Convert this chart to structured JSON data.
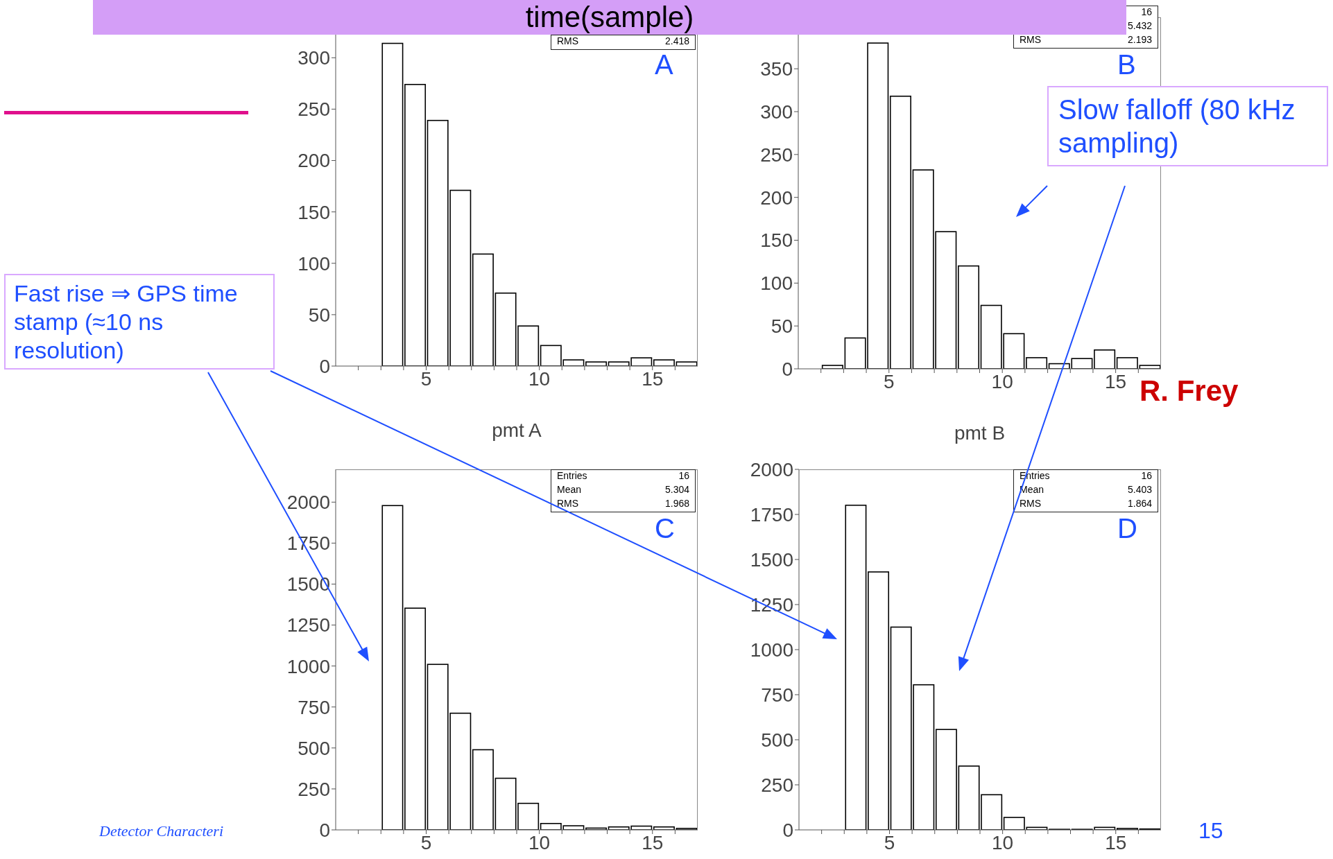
{
  "chart_data": [
    {
      "type": "histogram",
      "title": "time(sample)",
      "xlabel": "pmt A",
      "bins": [
        1,
        2,
        3,
        4,
        5,
        6,
        7,
        8,
        9,
        10,
        11,
        12,
        13,
        14,
        15,
        16,
        17
      ],
      "values": [
        0,
        0,
        314,
        274,
        239,
        171,
        109,
        71,
        39,
        20,
        6,
        4,
        4,
        8,
        6,
        4
      ],
      "color": "#000000",
      "xlim": [
        1,
        17
      ],
      "xticks": [
        {
          "value": 2,
          "label": null
        },
        {
          "value": 3,
          "label": null
        },
        {
          "value": 4,
          "label": null
        },
        5,
        {
          "value": 6,
          "label": null
        },
        {
          "value": 7,
          "label": null
        },
        {
          "value": 8,
          "label": null
        },
        {
          "value": 9,
          "label": null
        },
        10,
        {
          "value": 11,
          "label": null
        },
        {
          "value": 12,
          "label": null
        },
        {
          "value": 13,
          "label": null
        },
        {
          "value": 14,
          "label": null
        },
        15,
        {
          "value": 16,
          "label": null
        }
      ],
      "ylim": [
        0,
        340
      ],
      "yticks": [
        0,
        50,
        100,
        150,
        200,
        250,
        300
      ],
      "annotations": [
        "A",
        "RMS 2.418"
      ]
    },
    {
      "type": "histogram",
      "xlabel": "pmt B",
      "bins": [
        1,
        2,
        3,
        4,
        5,
        6,
        7,
        8,
        9,
        10,
        11,
        12,
        13,
        14,
        15,
        16,
        17
      ],
      "values": [
        0,
        4,
        36,
        380,
        318,
        232,
        160,
        120,
        74,
        41,
        13,
        6,
        12,
        22,
        13,
        4
      ],
      "color": "#000000",
      "xlim": [
        1,
        17
      ],
      "xticks": [
        {
          "value": 2,
          "label": null
        },
        {
          "value": 3,
          "label": null
        },
        {
          "value": 4,
          "label": null
        },
        5,
        {
          "value": 6,
          "label": null
        },
        {
          "value": 7,
          "label": null
        },
        {
          "value": 8,
          "label": null
        },
        {
          "value": 9,
          "label": null
        },
        10,
        {
          "value": 11,
          "label": null
        },
        {
          "value": 12,
          "label": null
        },
        {
          "value": 13,
          "label": null
        },
        {
          "value": 14,
          "label": null
        },
        15,
        {
          "value": 16,
          "label": null
        }
      ],
      "ylim": [
        0,
        410
      ],
      "yticks": [
        0,
        50,
        100,
        150,
        200,
        250,
        300,
        350
      ],
      "annotations": [
        "B",
        "16",
        "5.432",
        "RMS 2.193",
        "Slow falloff (80 kHz sampling)",
        "R. Frey"
      ]
    },
    {
      "type": "histogram",
      "bins": [
        1,
        2,
        3,
        4,
        5,
        6,
        7,
        8,
        9,
        10,
        11,
        12,
        13,
        14,
        15,
        16,
        17
      ],
      "values": [
        0,
        0,
        1979,
        1353,
        1010,
        712,
        489,
        315,
        162,
        39,
        25,
        11,
        18,
        23,
        18,
        9
      ],
      "color": "#000000",
      "xlim": [
        1,
        17
      ],
      "xticks": [
        {
          "value": 2,
          "label": null
        },
        {
          "value": 3,
          "label": null
        },
        {
          "value": 4,
          "label": null
        },
        5,
        {
          "value": 6,
          "label": null
        },
        {
          "value": 7,
          "label": null
        },
        {
          "value": 8,
          "label": null
        },
        {
          "value": 9,
          "label": null
        },
        10,
        {
          "value": 11,
          "label": null
        },
        {
          "value": 12,
          "label": null
        },
        {
          "value": 13,
          "label": null
        },
        {
          "value": 14,
          "label": null
        },
        15,
        {
          "value": 16,
          "label": null
        }
      ],
      "ylim": [
        0,
        2200
      ],
      "yticks": [
        0,
        250,
        500,
        750,
        1000,
        1250,
        1500,
        1750,
        2000
      ],
      "annotations": [
        "C",
        "Entries 16",
        "Mean 5.304",
        "RMS 1.968",
        "Fast rise ⇒ GPS time stamp (≈10 ns resolution)",
        "Detector Characteri"
      ]
    },
    {
      "type": "histogram",
      "bins": [
        1,
        2,
        3,
        4,
        5,
        6,
        7,
        8,
        9,
        10,
        11,
        12,
        13,
        14,
        15,
        16,
        17
      ],
      "values": [
        0,
        0,
        1801,
        1431,
        1125,
        805,
        557,
        354,
        195,
        69,
        14,
        3,
        3,
        14,
        8,
        5
      ],
      "color": "#000000",
      "xlim": [
        1,
        17
      ],
      "xticks": [
        {
          "value": 2,
          "label": null
        },
        {
          "value": 3,
          "label": null
        },
        {
          "value": 4,
          "label": null
        },
        5,
        {
          "value": 6,
          "label": null
        },
        {
          "value": 7,
          "label": null
        },
        {
          "value": 8,
          "label": null
        },
        {
          "value": 9,
          "label": null
        },
        10,
        {
          "value": 11,
          "label": null
        },
        {
          "value": 12,
          "label": null
        },
        {
          "value": 13,
          "label": null
        },
        {
          "value": 14,
          "label": null
        },
        15,
        {
          "value": 16,
          "label": null
        }
      ],
      "ylim": [
        0,
        2000
      ],
      "yticks": [
        0,
        250,
        500,
        750,
        1000,
        1250,
        1500,
        1750,
        2000
      ],
      "annotations": [
        "D",
        "Entries 16",
        "Mean 5.403",
        "RMS 1.864",
        "15"
      ]
    }
  ]
}
